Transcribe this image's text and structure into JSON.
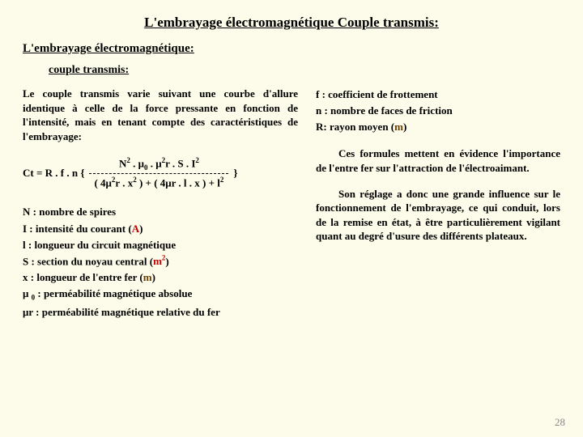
{
  "title": "L'embrayage électromagnétique Couple transmis:",
  "subtitle1": "L'embrayage électromagnétique:",
  "subtitle2": "couple transmis:",
  "left": {
    "para": "Le couple transmis varie suivant une courbe d'allure identique à celle de la force pressante en fonction de l'intensité, mais en tenant compte des caractéristiques de l'embrayage:",
    "formula": {
      "prefix": "Ct = R . f . n {",
      "num_a": "N",
      "num_b": " . μ",
      "num_c": " . μ",
      "num_d": "r . S . I",
      "den_a": "( 4μ",
      "den_b": "r . x",
      "den_c": " ) + ( 4μr . l . x ) + l",
      "suffix": "}"
    },
    "defs": {
      "n": "N : nombre de spires",
      "i_label": "I : intensité du courant (",
      "i_unit": "A",
      "i_close": ")",
      "l": "l : longueur du circuit magnétique",
      "s_label": "S : section du noyau central (",
      "s_unit": "m",
      "s_close": ")",
      "x_label": "x : longueur de l'entre fer (",
      "x_unit": "m",
      "x_close": ")",
      "mu0_a": "μ ",
      "mu0_b": " : perméabilité magnétique absolue",
      "mur": "μr : perméabilité magnétique relative du fer"
    }
  },
  "right": {
    "defs": {
      "f": "f : coefficient de frottement",
      "n": "n : nombre de faces de friction",
      "r_label": "R: rayon moyen (",
      "r_unit": "m",
      "r_close": ")"
    },
    "para1": "Ces formules mettent en évidence l'importance de l'entre fer sur l'attraction de l'électroaimant.",
    "para2": "Son réglage a donc une grande influence sur le fonctionnement de l'embrayage, ce qui conduit, lors de la remise en état, à être particulièrement vigilant quant au degré d'usure des différents plateaux."
  },
  "page": "28"
}
